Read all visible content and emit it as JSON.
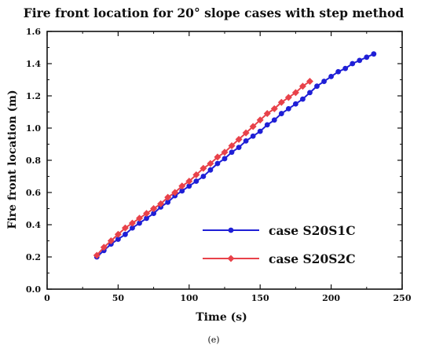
{
  "caption": "(e)",
  "chart_data": {
    "type": "line",
    "title": "Fire front location for 20° slope cases with step method",
    "xlabel": "Time (s)",
    "ylabel": "Fire front location (m)",
    "xlim": [
      0,
      250
    ],
    "ylim": [
      0.0,
      1.6
    ],
    "xticks": [
      "0",
      "50",
      "100",
      "150",
      "200",
      "250"
    ],
    "yticks": [
      "0.0",
      "0.2",
      "0.4",
      "0.6",
      "0.8",
      "1.0",
      "1.2",
      "1.4",
      "1.6"
    ],
    "grid": false,
    "legend_position": "bottom-right",
    "series": [
      {
        "name": "case S20S1C",
        "color": "#1f1fd6",
        "marker": "circle",
        "x": [
          35,
          40,
          45,
          50,
          55,
          60,
          65,
          70,
          75,
          80,
          85,
          90,
          95,
          100,
          105,
          110,
          115,
          120,
          125,
          130,
          135,
          140,
          145,
          150,
          155,
          160,
          165,
          170,
          175,
          180,
          185,
          190,
          195,
          200,
          205,
          210,
          215,
          220,
          225,
          230
        ],
        "y": [
          0.2,
          0.24,
          0.28,
          0.31,
          0.34,
          0.38,
          0.41,
          0.44,
          0.47,
          0.51,
          0.54,
          0.58,
          0.61,
          0.64,
          0.67,
          0.7,
          0.74,
          0.78,
          0.81,
          0.85,
          0.88,
          0.92,
          0.95,
          0.98,
          1.02,
          1.05,
          1.09,
          1.12,
          1.15,
          1.18,
          1.22,
          1.26,
          1.29,
          1.32,
          1.35,
          1.37,
          1.4,
          1.42,
          1.44,
          1.46
        ]
      },
      {
        "name": "case S20S2C",
        "color": "#e8424a",
        "marker": "diamond",
        "x": [
          35,
          40,
          45,
          50,
          55,
          60,
          65,
          70,
          75,
          80,
          85,
          90,
          95,
          100,
          105,
          110,
          115,
          120,
          125,
          130,
          135,
          140,
          145,
          150,
          155,
          160,
          165,
          170,
          175,
          180,
          185
        ],
        "y": [
          0.21,
          0.26,
          0.3,
          0.34,
          0.38,
          0.41,
          0.44,
          0.47,
          0.5,
          0.53,
          0.57,
          0.6,
          0.64,
          0.67,
          0.71,
          0.75,
          0.78,
          0.82,
          0.85,
          0.89,
          0.93,
          0.97,
          1.01,
          1.05,
          1.09,
          1.12,
          1.16,
          1.19,
          1.22,
          1.26,
          1.29
        ]
      }
    ]
  }
}
